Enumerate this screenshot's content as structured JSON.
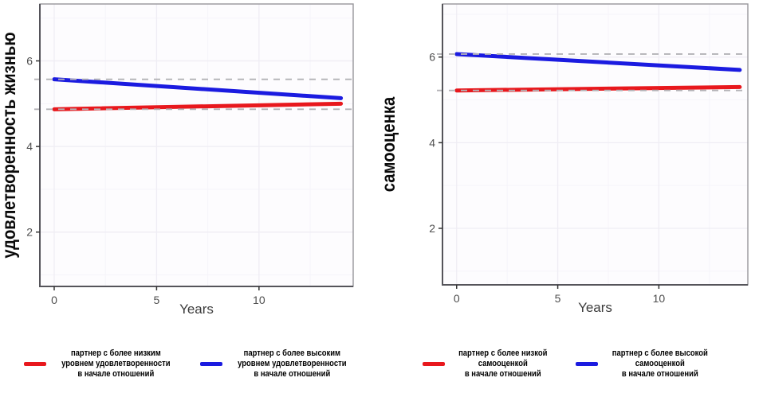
{
  "colors": {
    "red_series": "#e8181d",
    "blue_series": "#1b1be0",
    "ref_line": "#b3b2b6",
    "panel_bg": "#fdfcfe",
    "grid_major": "#efedf4",
    "grid_minor": "#f6f4fa",
    "panel_border": "#97969b",
    "axis_line": "#55545a",
    "tick_mark": "#333333"
  },
  "chart_data": [
    {
      "type": "line",
      "y_title": "удовлетворенность жизнью",
      "x_title": "Years",
      "x_ticks": [
        0,
        5,
        10
      ],
      "y_ticks": [
        2,
        4,
        6
      ],
      "xlim": [
        -0.7,
        14.6
      ],
      "ylim": [
        0.73,
        7.33
      ],
      "grid_minor_x": [
        2.5,
        7.5,
        12.5
      ],
      "grid_minor_y": [
        1,
        3,
        5,
        7
      ],
      "series": [
        {
          "name": "партнер с более низким уровнем удовлетворенности в начале отношений",
          "color": "#e8181d",
          "x": [
            0,
            14
          ],
          "y": [
            4.87,
            5.0
          ]
        },
        {
          "name": "партнер с более высоким уровнем удовлетворенности в начале отношений",
          "color": "#1b1be0",
          "x": [
            0,
            14
          ],
          "y": [
            5.57,
            5.13
          ]
        }
      ],
      "ref_lines": [
        5.57,
        4.87
      ],
      "legend": [
        {
          "color": "#e8181d",
          "label": "партнер с более низким\nуровнем удовлетворенности\nв начале отношений"
        },
        {
          "color": "#1b1be0",
          "label": "партнер с более высоким\nуровнем удовлетворенности\nв начале отношений"
        }
      ]
    },
    {
      "type": "line",
      "y_title": "самооценка",
      "x_title": "Years",
      "x_ticks": [
        0,
        5,
        10
      ],
      "y_ticks": [
        2,
        4,
        6
      ],
      "xlim": [
        -0.7,
        14.4
      ],
      "ylim": [
        0.68,
        7.24
      ],
      "grid_minor_x": [
        2.5,
        7.5,
        12.5
      ],
      "grid_minor_y": [
        1,
        3,
        5,
        7
      ],
      "series": [
        {
          "name": "партнер с более низкой самооценкой в начале отношений",
          "color": "#e8181d",
          "x": [
            0,
            14
          ],
          "y": [
            5.22,
            5.3
          ]
        },
        {
          "name": "партнер с более высокой самооценкой в начале отношений",
          "color": "#1b1be0",
          "x": [
            0,
            14
          ],
          "y": [
            6.07,
            5.7
          ]
        }
      ],
      "ref_lines": [
        6.07,
        5.22
      ],
      "legend": [
        {
          "color": "#e8181d",
          "label": "партнер с более низкой\nсамооценкой\nв начале отношений"
        },
        {
          "color": "#1b1be0",
          "label": "партнер с более высокой\nсамооценкой\nв начале отношений"
        }
      ]
    }
  ]
}
